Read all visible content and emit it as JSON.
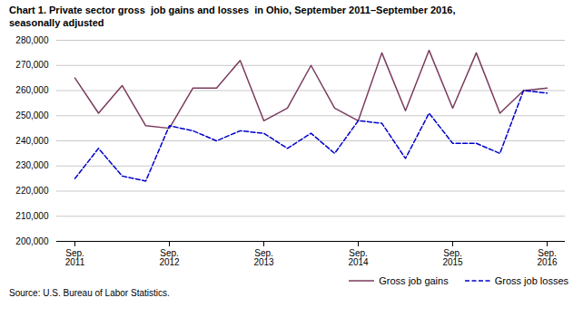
{
  "chart_data": {
    "type": "line",
    "title": "Chart 1. Private sector gross  job gains and losses  in Ohio, September 2011–September 2016,\nseasonally adjusted",
    "caption": "Source: U.S. Bureau of Labor Statistics.",
    "categories": [
      "Sep.\n2011",
      null,
      null,
      null,
      "Sep.\n2012",
      null,
      null,
      null,
      "Sep.\n2013",
      null,
      null,
      null,
      "Sep.\n2014",
      null,
      null,
      null,
      "Sep.\n2015",
      null,
      null,
      null,
      "Sep.\n2016"
    ],
    "series": [
      {
        "name": "Gross job gains",
        "color": "#7B3B5E",
        "line_style": "solid",
        "values": [
          265000,
          251000,
          262000,
          246000,
          245000,
          261000,
          261000,
          272000,
          248000,
          253000,
          270000,
          253000,
          248000,
          275000,
          252000,
          276000,
          253000,
          275000,
          251000,
          260000,
          261000
        ]
      },
      {
        "name": "Gross job losses",
        "color": "#0000CC",
        "line_style": "dashed",
        "values": [
          225000,
          237000,
          226000,
          224000,
          246000,
          244000,
          240000,
          244000,
          243000,
          237000,
          243000,
          235000,
          248000,
          247000,
          233000,
          251000,
          239000,
          239000,
          235000,
          260000,
          259000
        ]
      }
    ],
    "ylim": [
      200000,
      280000
    ],
    "yticks": [
      {
        "value": 200000,
        "label": "200,000"
      },
      {
        "value": 210000,
        "label": "210,000"
      },
      {
        "value": 220000,
        "label": "220,000"
      },
      {
        "value": 230000,
        "label": "230,000"
      },
      {
        "value": 240000,
        "label": "240,000"
      },
      {
        "value": 250000,
        "label": "250,000"
      },
      {
        "value": 260000,
        "label": "260,000"
      },
      {
        "value": 270000,
        "label": "270,000"
      },
      {
        "value": 280000,
        "label": "280,000"
      }
    ],
    "grid": true,
    "legend": "lower right"
  }
}
